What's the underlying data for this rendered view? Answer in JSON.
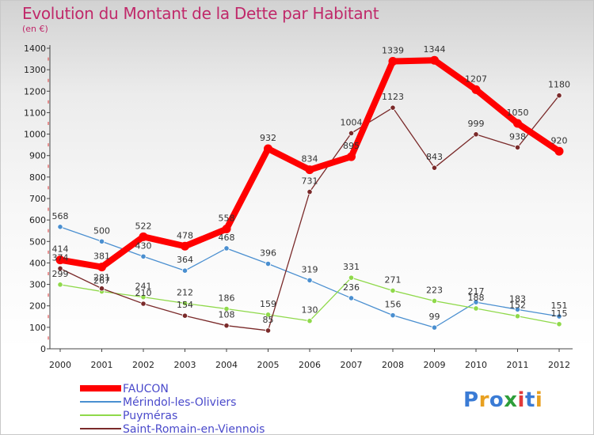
{
  "title": "Evolution du Montant de la Dette par Habitant",
  "subtitle": "(en €)",
  "brand": "Proxiti",
  "chart_data": {
    "type": "line",
    "x": [
      "2000",
      "2001",
      "2002",
      "2003",
      "2004",
      "2005",
      "2006",
      "2007",
      "2008",
      "2009",
      "2010",
      "2011",
      "2012"
    ],
    "ylim": [
      0,
      1400
    ],
    "yticks": [
      0,
      100,
      200,
      300,
      400,
      500,
      600,
      700,
      800,
      900,
      1000,
      1100,
      1200,
      1300,
      1400
    ],
    "grid": false,
    "legend_position": "bottom-left",
    "series": [
      {
        "name": "FAUCON",
        "color": "#ff0000",
        "values": [
          414,
          381,
          522,
          478,
          558,
          932,
          834,
          895,
          1339,
          1344,
          1207,
          1050,
          920
        ]
      },
      {
        "name": "Mérindol-les-Oliviers",
        "color": "#4a8fd0",
        "values": [
          568,
          500,
          430,
          364,
          468,
          396,
          319,
          236,
          156,
          99,
          217,
          183,
          151
        ]
      },
      {
        "name": "Puyméras",
        "color": "#8fd94a",
        "values": [
          299,
          267,
          241,
          212,
          186,
          159,
          130,
          331,
          271,
          223,
          188,
          152,
          115
        ]
      },
      {
        "name": "Saint-Romain-en-Viennois",
        "color": "#7a2a2a",
        "values": [
          374,
          281,
          210,
          154,
          108,
          85,
          731,
          1004,
          1123,
          843,
          999,
          938,
          1180
        ]
      }
    ]
  }
}
